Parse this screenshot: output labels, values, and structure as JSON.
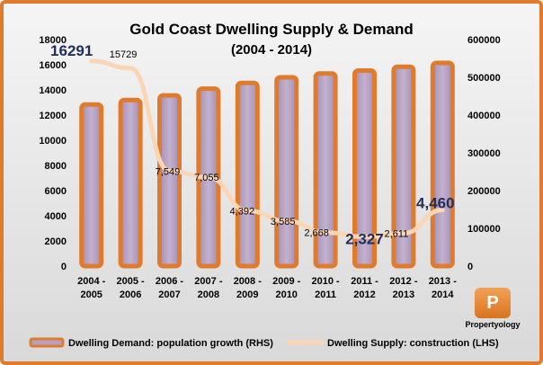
{
  "chart_data": {
    "type": "bar+line",
    "title": "Gold Coast Dwelling Supply & Demand",
    "subtitle": "(2004 - 2014)",
    "categories": [
      [
        "2004 -",
        "2005"
      ],
      [
        "2005 -",
        "2006"
      ],
      [
        "2006 -",
        "2007"
      ],
      [
        "2007 -",
        "2008"
      ],
      [
        "2008 -",
        "2009"
      ],
      [
        "2009 -",
        "2010"
      ],
      [
        "2010 -",
        "2011"
      ],
      [
        "2011 -",
        "2012"
      ],
      [
        "2012 -",
        "2013"
      ],
      [
        "2013 -",
        "2014"
      ]
    ],
    "left_axis": {
      "ylim": [
        0,
        18000
      ],
      "ticks": [
        "0",
        "2000",
        "4000",
        "6000",
        "8000",
        "10000",
        "12000",
        "14000",
        "16000",
        "18000"
      ]
    },
    "right_axis": {
      "ylim": [
        0,
        600000
      ],
      "ticks": [
        "0",
        "100000",
        "200000",
        "300000",
        "400000",
        "500000",
        "600000"
      ]
    },
    "series": [
      {
        "name": "Dwelling Demand:  population growth (RHS)",
        "type": "bar",
        "axis": "right",
        "values": [
          428000,
          440000,
          452000,
          470000,
          485000,
          500000,
          510000,
          518000,
          528000,
          538000
        ],
        "color_fill": "#b4a0c0",
        "color_border": "#e07a2c"
      },
      {
        "name": "Dwelling Supply: construction  (LHS)",
        "type": "line",
        "axis": "left",
        "values": [
          16291,
          15729,
          7549,
          7055,
          4392,
          3585,
          2668,
          2327,
          2611,
          4460
        ],
        "labels": [
          "16291",
          "15729",
          "7,549",
          "7,055",
          "4,392",
          "3,585",
          "2,668",
          "2,327",
          "2,611",
          "4,460"
        ],
        "highlight": [
          true,
          false,
          false,
          false,
          false,
          false,
          false,
          true,
          false,
          true
        ],
        "color": "#fcd5b5"
      }
    ],
    "grid": false,
    "legend_position": "bottom"
  },
  "logo": {
    "brand": "Propertyology",
    "mark": "P"
  }
}
